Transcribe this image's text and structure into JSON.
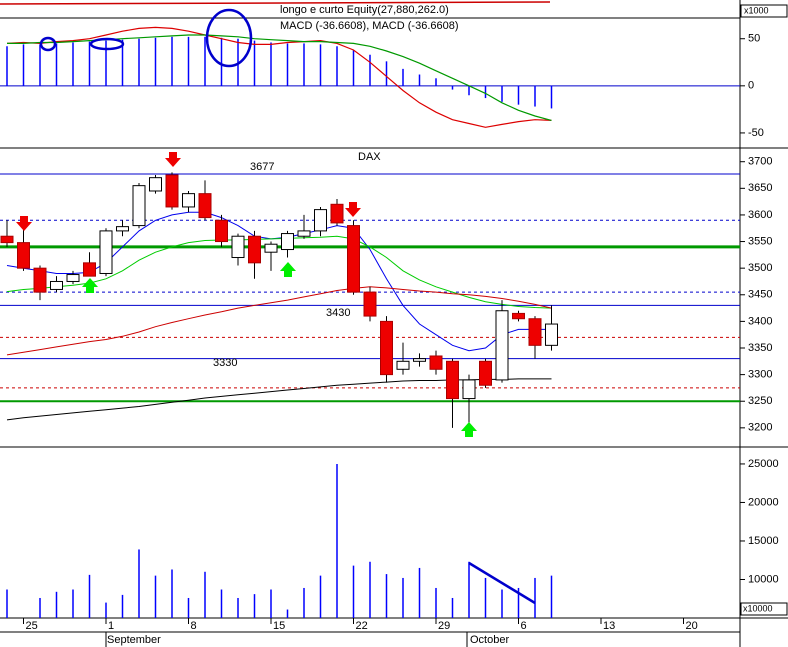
{
  "chart_data": [
    {
      "type": "macd",
      "title": "longo e curto Equity(27,880,262.0)",
      "subtitle": "MACD (-36.6608), MACD (-36.6608)",
      "scale_label": "x1000",
      "ylim": [
        -66,
        72
      ],
      "yticks": [
        50,
        0,
        -50
      ],
      "histogram": {
        "color": "#0000ff",
        "values": [
          42,
          44,
          44,
          45,
          46,
          47,
          48,
          49,
          50,
          51,
          52,
          52,
          52,
          51,
          50,
          48,
          46,
          45,
          45,
          44,
          42,
          38,
          33,
          26,
          18,
          12,
          8,
          -4,
          -10,
          -13,
          -17,
          -20,
          -22,
          -24,
          null,
          null,
          null,
          null,
          null,
          null,
          null,
          null,
          null,
          null,
          null
        ]
      },
      "series": [
        {
          "color": "#dd0000",
          "values": [
            45,
            46,
            45,
            47,
            48,
            50,
            54,
            58,
            61,
            62,
            61,
            58,
            54,
            50,
            46,
            44,
            44,
            46,
            47,
            48,
            45,
            38,
            25,
            10,
            -5,
            -18,
            -28,
            -36,
            -40,
            -44,
            -41,
            -38,
            -36,
            -36.6608,
            null,
            null,
            null,
            null,
            null,
            null,
            null,
            null,
            null,
            null,
            null
          ]
        },
        {
          "color": "#009900",
          "values": [
            45,
            45,
            46,
            46,
            47,
            48,
            49,
            50,
            51,
            52,
            53,
            54,
            54,
            53,
            52,
            50,
            49,
            48,
            47,
            47,
            46,
            45,
            42,
            37,
            31,
            24,
            16,
            8,
            0,
            -8,
            -18,
            -26,
            -32,
            -36.6608,
            null,
            null,
            null,
            null,
            null,
            null,
            null,
            null,
            null,
            null,
            null
          ]
        }
      ]
    },
    {
      "type": "candlestick",
      "title": "DAX",
      "ylim": [
        3164,
        3722
      ],
      "yticks": [
        3200,
        3250,
        3300,
        3350,
        3400,
        3450,
        3500,
        3550,
        3600,
        3650,
        3700
      ],
      "open": [
        3560,
        3548,
        3500,
        3460,
        3475,
        3510,
        3490,
        3570,
        3580,
        3645,
        3675,
        3615,
        3640,
        3590,
        3520,
        3560,
        3530,
        3535,
        3560,
        3570,
        3620,
        3580,
        3455,
        3400,
        3310,
        3325,
        3335,
        3325,
        3255,
        3325,
        3290,
        3415,
        3405,
        3355,
        null,
        null,
        null,
        null,
        null,
        null,
        null,
        null,
        null,
        null,
        null
      ],
      "high": [
        3590,
        3580,
        3505,
        3485,
        3495,
        3530,
        3575,
        3590,
        3660,
        3675,
        3680,
        3645,
        3665,
        3600,
        3565,
        3570,
        3550,
        3570,
        3600,
        3615,
        3630,
        3590,
        3465,
        3410,
        3360,
        3340,
        3345,
        3330,
        3300,
        3330,
        3440,
        3420,
        3410,
        3430,
        null,
        null,
        null,
        null,
        null,
        null,
        null,
        null,
        null,
        null,
        null
      ],
      "low": [
        3540,
        3495,
        3440,
        3455,
        3470,
        3485,
        3485,
        3560,
        3575,
        3640,
        3610,
        3605,
        3590,
        3540,
        3505,
        3480,
        3495,
        3520,
        3555,
        3560,
        3580,
        3450,
        3400,
        3285,
        3300,
        3315,
        3300,
        3200,
        3210,
        3275,
        3285,
        3400,
        3330,
        3345,
        null,
        null,
        null,
        null,
        null,
        null,
        null,
        null,
        null,
        null,
        null
      ],
      "close": [
        3548,
        3500,
        3455,
        3475,
        3488,
        3485,
        3570,
        3578,
        3655,
        3670,
        3615,
        3640,
        3595,
        3550,
        3560,
        3510,
        3545,
        3565,
        3570,
        3610,
        3585,
        3455,
        3410,
        3300,
        3325,
        3330,
        3310,
        3255,
        3290,
        3280,
        3420,
        3405,
        3355,
        3395,
        null,
        null,
        null,
        null,
        null,
        null,
        null,
        null,
        null,
        null,
        null
      ],
      "up_color": "#ffffff",
      "down_color": "#ee0000",
      "series": [
        {
          "color": "#0000ee",
          "values": [
            3505,
            3500,
            3495,
            3490,
            3490,
            3492,
            3510,
            3540,
            3570,
            3590,
            3600,
            3605,
            3605,
            3595,
            3580,
            3560,
            3555,
            3558,
            3565,
            3572,
            3580,
            3575,
            3535,
            3480,
            3430,
            3395,
            3375,
            3355,
            3345,
            3350,
            3375,
            3385,
            3385,
            3385,
            null,
            null,
            null,
            null,
            null,
            null,
            null,
            null,
            null,
            null,
            null
          ]
        },
        {
          "color": "#00cc00",
          "values": [
            3456,
            3460,
            3462,
            3465,
            3468,
            3472,
            3480,
            3495,
            3515,
            3530,
            3540,
            3548,
            3552,
            3553,
            3553,
            3554,
            3555,
            3556,
            3557,
            3558,
            3560,
            3555,
            3540,
            3520,
            3495,
            3478,
            3465,
            3455,
            3445,
            3437,
            3432,
            3428,
            3426,
            3425,
            null,
            null,
            null,
            null,
            null,
            null,
            null,
            null,
            null,
            null,
            null
          ]
        },
        {
          "color": "#cc0000",
          "values": [
            3337,
            3342,
            3347,
            3352,
            3357,
            3362,
            3366,
            3372,
            3380,
            3390,
            3398,
            3405,
            3412,
            3418,
            3425,
            3430,
            3435,
            3440,
            3446,
            3452,
            3458,
            3462,
            3465,
            3463,
            3460,
            3457,
            3455,
            3452,
            3450,
            3447,
            3443,
            3438,
            3432,
            3425,
            null,
            null,
            null,
            null,
            null,
            null,
            null,
            null,
            null,
            null,
            null
          ]
        },
        {
          "color": "#000000",
          "values": [
            3215,
            3219,
            3222,
            3225,
            3228,
            3231,
            3234,
            3237,
            3240,
            3244,
            3248,
            3252,
            3256,
            3259,
            3262,
            3265,
            3268,
            3271,
            3274,
            3277,
            3280,
            3282,
            3284,
            3286,
            3288,
            3289,
            3289,
            3290,
            3290,
            3291,
            3291,
            3292,
            3292,
            3292,
            null,
            null,
            null,
            null,
            null,
            null,
            null,
            null,
            null,
            null,
            null
          ]
        }
      ],
      "hlines": [
        {
          "value": 3677,
          "color": "#0000cc",
          "width": 1,
          "dashed": false
        },
        {
          "value": 3430,
          "color": "#0000cc",
          "width": 1,
          "dashed": false
        },
        {
          "value": 3330,
          "color": "#0000cc",
          "width": 1,
          "dashed": false
        },
        {
          "value": 3540,
          "color": "#009900",
          "width": 3,
          "dashed": false
        },
        {
          "value": 3250,
          "color": "#009900",
          "width": 2,
          "dashed": false
        },
        {
          "value": 3590,
          "color": "#0000cc",
          "width": 1,
          "dashed": true
        },
        {
          "value": 3455,
          "color": "#0000cc",
          "width": 1,
          "dashed": true
        },
        {
          "value": 3370,
          "color": "#cc0000",
          "width": 1,
          "dashed": true
        },
        {
          "value": 3275,
          "color": "#cc0000",
          "width": 1,
          "dashed": true
        }
      ]
    },
    {
      "type": "bar",
      "scale_label": "x10000",
      "categories": [
        null,
        "25",
        null,
        null,
        null,
        null,
        "1",
        null,
        null,
        null,
        null,
        "8",
        null,
        null,
        null,
        null,
        "15",
        null,
        null,
        null,
        null,
        "22",
        null,
        null,
        null,
        null,
        "29",
        null,
        null,
        null,
        null,
        "6",
        null,
        null,
        null,
        null,
        "13",
        null,
        null,
        null,
        null,
        "20",
        null,
        null,
        null
      ],
      "months": [
        "September",
        "October"
      ],
      "color": "#0000ff",
      "ylim": [
        5000,
        27200
      ],
      "yticks": [
        10000,
        15000,
        20000,
        25000
      ],
      "values": [
        8700,
        null,
        7600,
        8400,
        8700,
        10600,
        7000,
        8000,
        13900,
        10500,
        11300,
        7600,
        11000,
        8700,
        7600,
        8100,
        8700,
        6100,
        8900,
        10500,
        25000,
        11800,
        12300,
        10700,
        10200,
        11500,
        8900,
        7600,
        12300,
        10200,
        8700,
        8900,
        10200,
        10500,
        null,
        null,
        null,
        null,
        null,
        null,
        null,
        null,
        null,
        null,
        null
      ]
    }
  ]
}
